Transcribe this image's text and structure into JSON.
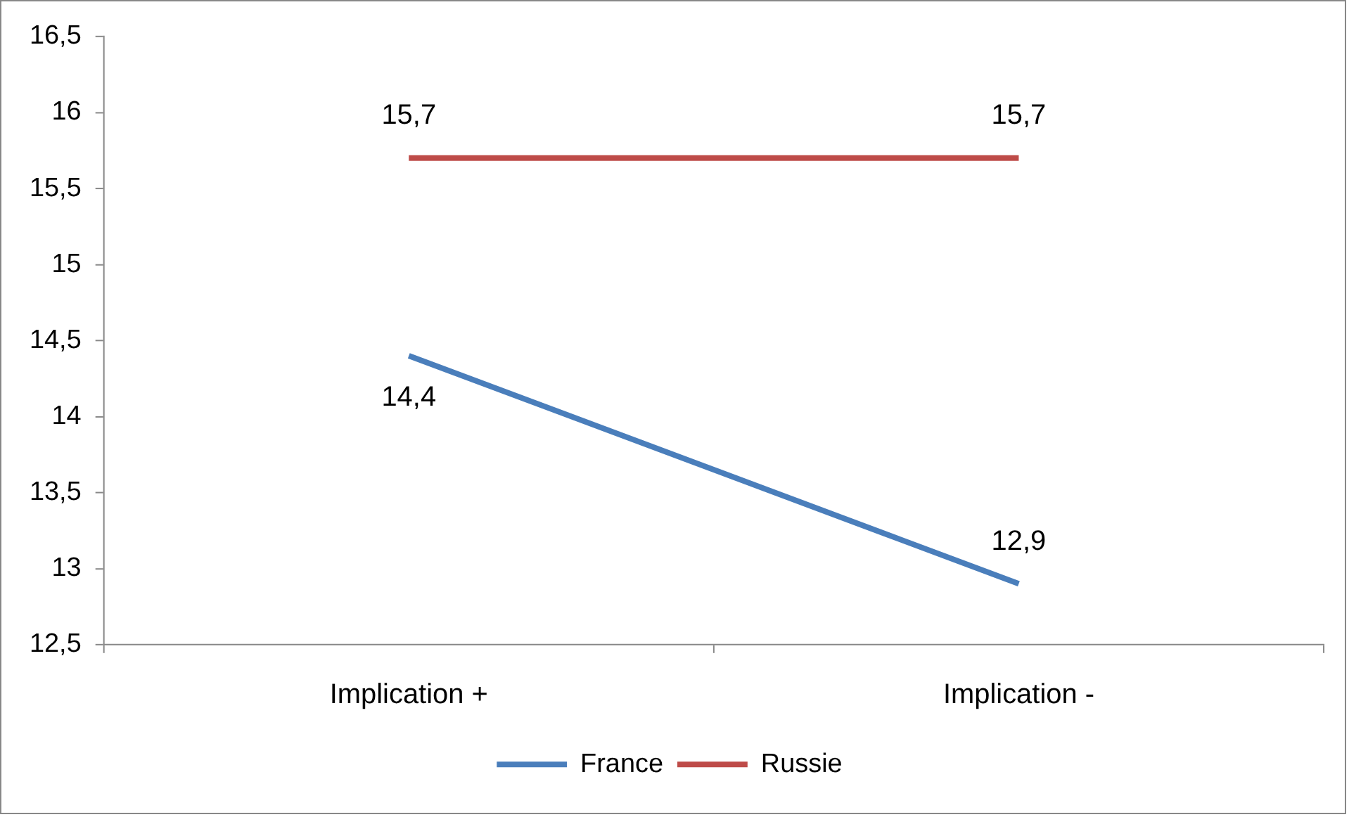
{
  "chart_data": {
    "type": "line",
    "categories": [
      "Implication +",
      "Implication -"
    ],
    "series": [
      {
        "name": "France",
        "color": "#4a7ebb",
        "values": [
          14.4,
          12.9
        ],
        "value_labels": [
          "14,4",
          "12,9"
        ]
      },
      {
        "name": "Russie",
        "color": "#be4b48",
        "values": [
          15.7,
          15.7
        ],
        "value_labels": [
          "15,7",
          "15,7"
        ]
      }
    ],
    "ylim": [
      12.5,
      16.5
    ],
    "yticks": [
      {
        "value": 12.5,
        "label": "12,5"
      },
      13,
      {
        "value": 13.5,
        "label": "13,5"
      },
      14,
      {
        "value": 14.5,
        "label": "14,5"
      },
      15,
      {
        "value": 15.5,
        "label": "15,5"
      },
      16,
      {
        "value": 16.5,
        "label": "16,5"
      }
    ],
    "grid": false,
    "legend": "bottom"
  }
}
